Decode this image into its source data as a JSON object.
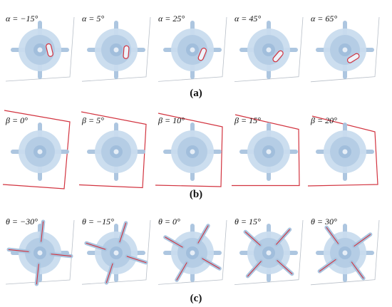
{
  "rows": [
    {
      "id": "a",
      "caption": "(a)",
      "variable": "α",
      "kind": "alpha",
      "cells": [
        {
          "label": "α = −15°",
          "angle": -15
        },
        {
          "label": "α = 5°",
          "angle": 5
        },
        {
          "label": "α = 25°",
          "angle": 25
        },
        {
          "label": "α = 45°",
          "angle": 45
        },
        {
          "label": "α = 65°",
          "angle": 65
        }
      ]
    },
    {
      "id": "b",
      "caption": "(b)",
      "variable": "β",
      "kind": "beta",
      "cells": [
        {
          "label": "β = 0°",
          "angle": 0
        },
        {
          "label": "β = 5°",
          "angle": 5
        },
        {
          "label": "β = 10°",
          "angle": 10
        },
        {
          "label": "β = 15°",
          "angle": 15
        },
        {
          "label": "β = 20°",
          "angle": 20
        }
      ]
    },
    {
      "id": "c",
      "caption": "(c)",
      "variable": "θ",
      "kind": "theta",
      "cells": [
        {
          "label": "θ = −30°",
          "angle": -30
        },
        {
          "label": "θ = −15°",
          "angle": -15
        },
        {
          "label": "θ = 0°",
          "angle": 0
        },
        {
          "label": "θ = 15°",
          "angle": 15
        },
        {
          "label": "θ = 30°",
          "angle": 30
        }
      ]
    }
  ],
  "colors": {
    "disc_outer": "#c9dcee",
    "disc_mid": "#b3cbe3",
    "disc_core": "#9fbcda",
    "blade": "#a9c4df",
    "highlight": "#d2333f",
    "frame": "#b8bfc8",
    "red_frame": "#d2333f"
  }
}
